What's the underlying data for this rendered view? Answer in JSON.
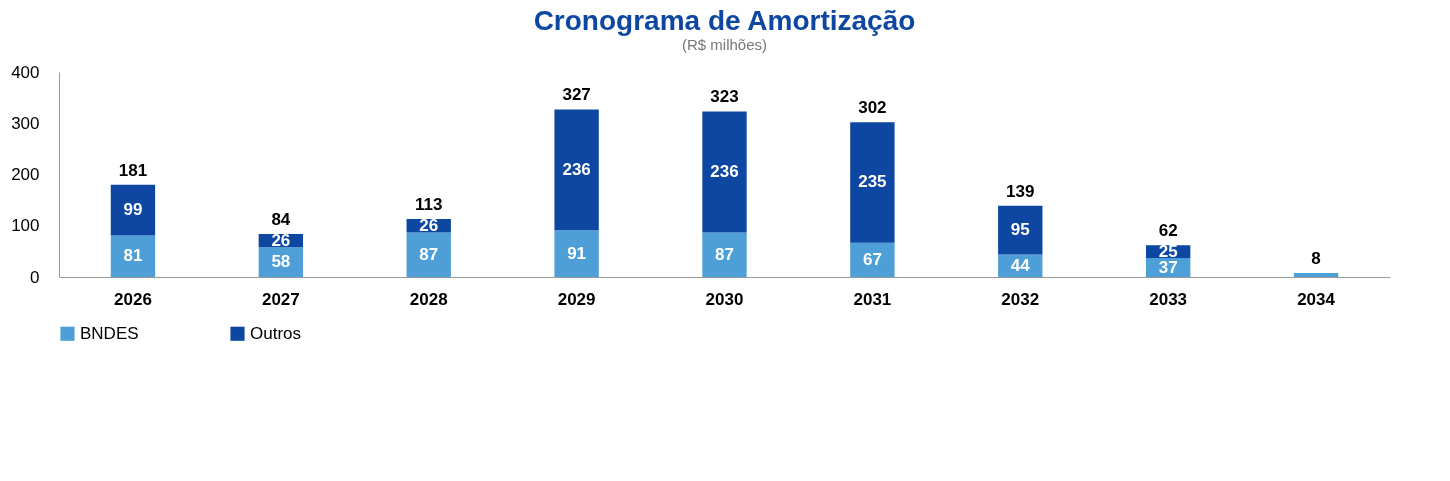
{
  "chart_data": {
    "type": "bar",
    "title": "Cronograma de Amortização",
    "ylabel": "(R$ milhões)",
    "categories": [
      "2026",
      "2027",
      "2028",
      "2029",
      "2030",
      "2031",
      "2032",
      "2033",
      "2034"
    ],
    "stacked": true,
    "series": [
      {
        "name": "BNDES",
        "color": "#4e9fd7",
        "values": [
          81,
          58,
          87,
          91,
          87,
          67,
          44,
          37,
          8
        ],
        "value_labels": [
          "81",
          "58",
          "87",
          "91",
          "87",
          "67",
          "44",
          "37",
          null
        ]
      },
      {
        "name": "Outros",
        "color": "#0d47a1",
        "values": [
          99,
          26,
          26,
          236,
          236,
          235,
          95,
          25,
          null
        ],
        "value_labels": [
          "99",
          "26",
          "26",
          "236",
          "236",
          "235",
          "95",
          "25",
          null
        ]
      }
    ],
    "totals": [
      "181",
      "84",
      "113",
      "327",
      "323",
      "302",
      "139",
      "62",
      "8"
    ],
    "ylim": [
      0,
      400
    ],
    "yticks": [
      0,
      100,
      200,
      300,
      400
    ],
    "grid": false,
    "legend": "bottom"
  }
}
